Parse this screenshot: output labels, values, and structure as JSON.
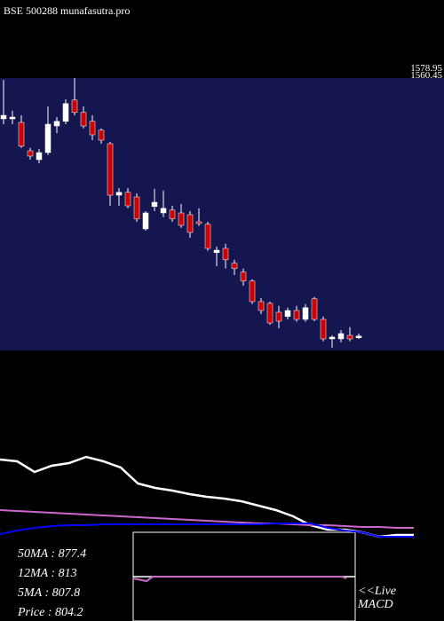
{
  "chart_data": [
    {
      "type": "candlestick",
      "title": "BSE 500288 munafasutra.pro",
      "top_labels": [
        "1578.95",
        "1560.45"
      ],
      "ylim": [
        800,
        1600
      ],
      "open": [
        1475,
        1475,
        1465,
        1385,
        1360,
        1380,
        1455,
        1468,
        1528,
        1493,
        1468,
        1443,
        1405,
        1260,
        1268,
        1255,
        1165,
        1228,
        1210,
        1218,
        1210,
        1205,
        1185,
        1178,
        1098,
        1110,
        1068,
        1043,
        1018,
        960,
        955,
        930,
        918,
        935,
        910,
        968,
        910,
        855,
        855,
        865,
        860
      ],
      "high": [
        1585,
        1498,
        1485,
        1393,
        1390,
        1510,
        1480,
        1530,
        1590,
        1510,
        1485,
        1448,
        1410,
        1280,
        1280,
        1265,
        1215,
        1278,
        1273,
        1230,
        1235,
        1215,
        1223,
        1185,
        1115,
        1123,
        1078,
        1053,
        1023,
        970,
        960,
        948,
        943,
        948,
        953,
        973,
        918,
        865,
        880,
        888,
        870
      ],
      "low": [
        1460,
        1460,
        1393,
        1360,
        1350,
        1373,
        1435,
        1460,
        1485,
        1448,
        1415,
        1405,
        1230,
        1230,
        1223,
        1185,
        1160,
        1215,
        1198,
        1185,
        1168,
        1140,
        1173,
        1103,
        1060,
        1053,
        1035,
        1005,
        953,
        925,
        895,
        885,
        910,
        903,
        903,
        905,
        848,
        830,
        845,
        848,
        855
      ],
      "close": [
        1485,
        1480,
        1398,
        1370,
        1380,
        1460,
        1468,
        1518,
        1493,
        1455,
        1430,
        1415,
        1260,
        1268,
        1230,
        1193,
        1210,
        1240,
        1223,
        1193,
        1175,
        1155,
        1180,
        1110,
        1105,
        1078,
        1053,
        1018,
        960,
        935,
        900,
        905,
        935,
        910,
        943,
        910,
        855,
        860,
        870,
        855,
        863
      ],
      "up_color": "#ffffff",
      "down_color": "#cc0000",
      "background": "#151550"
    },
    {
      "type": "line",
      "x": [
        0,
        1,
        2,
        3,
        4,
        5,
        6,
        7,
        8,
        9,
        10,
        11,
        12,
        13,
        14,
        15,
        16,
        17,
        18,
        19,
        20,
        21,
        22,
        23,
        24
      ],
      "xlim": [
        0,
        24
      ],
      "ylim": [
        -10,
        100
      ],
      "series": [
        {
          "color": "#ffffff",
          "values": [
            82,
            80,
            68,
            75,
            78,
            85,
            80,
            73,
            55,
            50,
            47,
            43,
            40,
            38,
            35,
            30,
            25,
            18,
            8,
            3,
            3,
            0,
            -5,
            -3,
            -3
          ]
        },
        {
          "color": "#cc66cc",
          "values": [
            25,
            24,
            23,
            22,
            21,
            20,
            19,
            18,
            17,
            16,
            15,
            14,
            13,
            12,
            11,
            10,
            10,
            9,
            8,
            8,
            7,
            6,
            6,
            5,
            5
          ]
        },
        {
          "color": "#0000ff",
          "values": [
            -2,
            2,
            5,
            7,
            8,
            8,
            9,
            9,
            9,
            9,
            9,
            9,
            9,
            9,
            9,
            9,
            10,
            10,
            10,
            5,
            2,
            0,
            -5,
            -5,
            -5
          ]
        }
      ]
    }
  ],
  "info": {
    "lines": [
      "50MA : 877.4",
      "12MA : 813",
      "5MA : 807.8",
      "Price  : 804.2"
    ],
    "live": "<<Live",
    "macd": "MACD"
  }
}
